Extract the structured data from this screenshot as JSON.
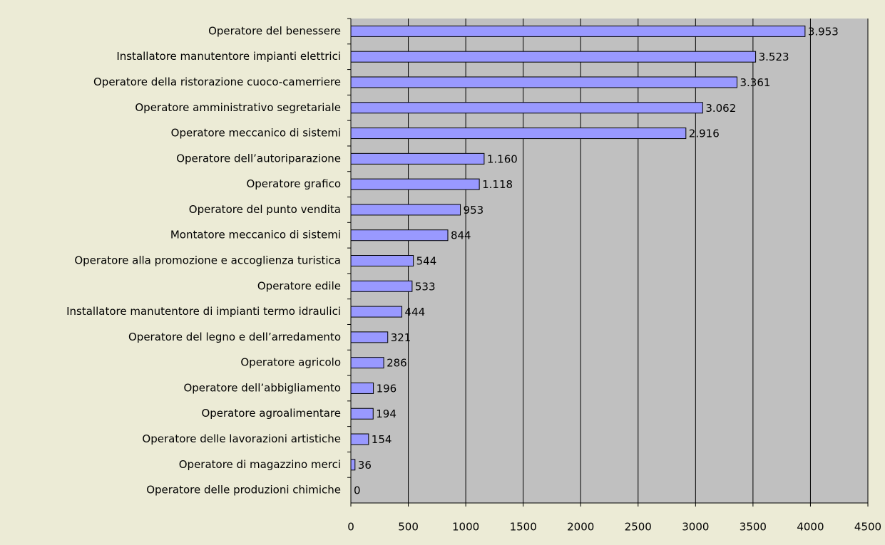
{
  "chart_data": {
    "type": "barh",
    "categories": [
      "Operatore del benessere",
      "Installatore manutentore impianti elettrici",
      "Operatore della ristorazione cuoco-camerriere",
      "Operatore amministrativo segretariale",
      "Operatore meccanico di sistemi",
      "Operatore dell’autoriparazione",
      "Operatore grafico",
      "Operatore del punto vendita",
      "Montatore meccanico di sistemi",
      "Operatore alla promozione e accoglienza turistica",
      "Operatore edile",
      "Installatore manutentore di impianti termo idraulici",
      "Operatore del legno e dell’arredamento",
      "Operatore agricolo",
      "Operatore dell’abbigliamento",
      "Operatore agroalimentare",
      "Operatore delle lavorazioni artistiche",
      "Operatore di magazzino merci",
      "Operatore delle produzioni chimiche"
    ],
    "values": [
      3953,
      3523,
      3361,
      3062,
      2916,
      1160,
      1118,
      953,
      844,
      544,
      533,
      444,
      321,
      286,
      196,
      194,
      154,
      36,
      0
    ],
    "value_labels": [
      "3.953",
      "3.523",
      "3.361",
      "3.062",
      "2.916",
      "1.160",
      "1.118",
      "953",
      "844",
      "544",
      "533",
      "444",
      "321",
      "286",
      "196",
      "194",
      "154",
      "36",
      "0"
    ],
    "color": "#9999ff",
    "xlim": [
      0,
      4500
    ],
    "xticks": [
      0,
      500,
      1000,
      1500,
      2000,
      2500,
      3000,
      3500,
      4000,
      4500
    ],
    "grid": true
  }
}
